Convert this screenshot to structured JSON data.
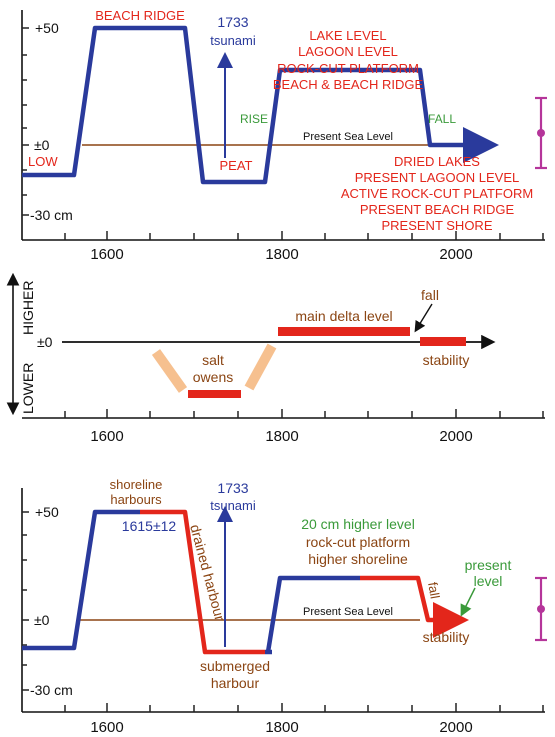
{
  "colors": {
    "blue": "#2a3a9c",
    "red": "#e3261b",
    "green": "#3a9a3a",
    "brown": "#8b4513",
    "purple": "#b5359a",
    "peach": "#f6c08f",
    "black": "#111111"
  },
  "panel1": {
    "y_ticks": {
      "plus50": "+50",
      "zero": "±0",
      "minus30": "-30 cm"
    },
    "x_ticks": [
      "1600",
      "1800",
      "2000"
    ],
    "low": "LOW",
    "beach_ridge": "BEACH RIDGE",
    "tsunami_year": "1733",
    "tsunami_word": "tsunami",
    "peat": "PEAT",
    "rise": "RISE",
    "fall": "FALL",
    "present_sea_level": "Present Sea Level",
    "top_block": [
      "LAKE LEVEL",
      "LAGOON LEVEL",
      "ROCK-CUT PLATFORM",
      "BEACH & BEACH RIDGE"
    ],
    "bottom_block": [
      "DRIED LAKES",
      "PRESENT LAGOON LEVEL",
      "ACTIVE ROCK-CUT PLATFORM",
      "PRESENT BEACH RIDGE",
      "PRESENT SHORE"
    ]
  },
  "panel2": {
    "lower": "LOWER",
    "higher": "HIGHER",
    "zero": "±0",
    "x_ticks": [
      "1600",
      "1800",
      "2000"
    ],
    "main_delta_level": "main delta level",
    "fall": "fall",
    "stability": "stability",
    "salt_owens": [
      "salt",
      "owens"
    ]
  },
  "panel3": {
    "y_ticks": {
      "plus50": "+50",
      "zero": "±0",
      "minus30": "-30 cm"
    },
    "x_ticks": [
      "1600",
      "1800",
      "2000"
    ],
    "shoreline_harbours": [
      "shoreline",
      "harbours"
    ],
    "date_1615": "1615±12",
    "tsunami_year": "1733",
    "tsunami_word": "tsunami",
    "drained_harbour": "drained harbour",
    "submerged_harbour": [
      "submerged",
      "harbour"
    ],
    "higher_level": "20 cm higher level",
    "rock_cut": "rock-cut platform",
    "higher_shoreline": "higher shoreline",
    "fall": "fall",
    "present_level": [
      "present",
      "level"
    ],
    "present_sea_level": "Present Sea Level",
    "stability": "stability"
  }
}
